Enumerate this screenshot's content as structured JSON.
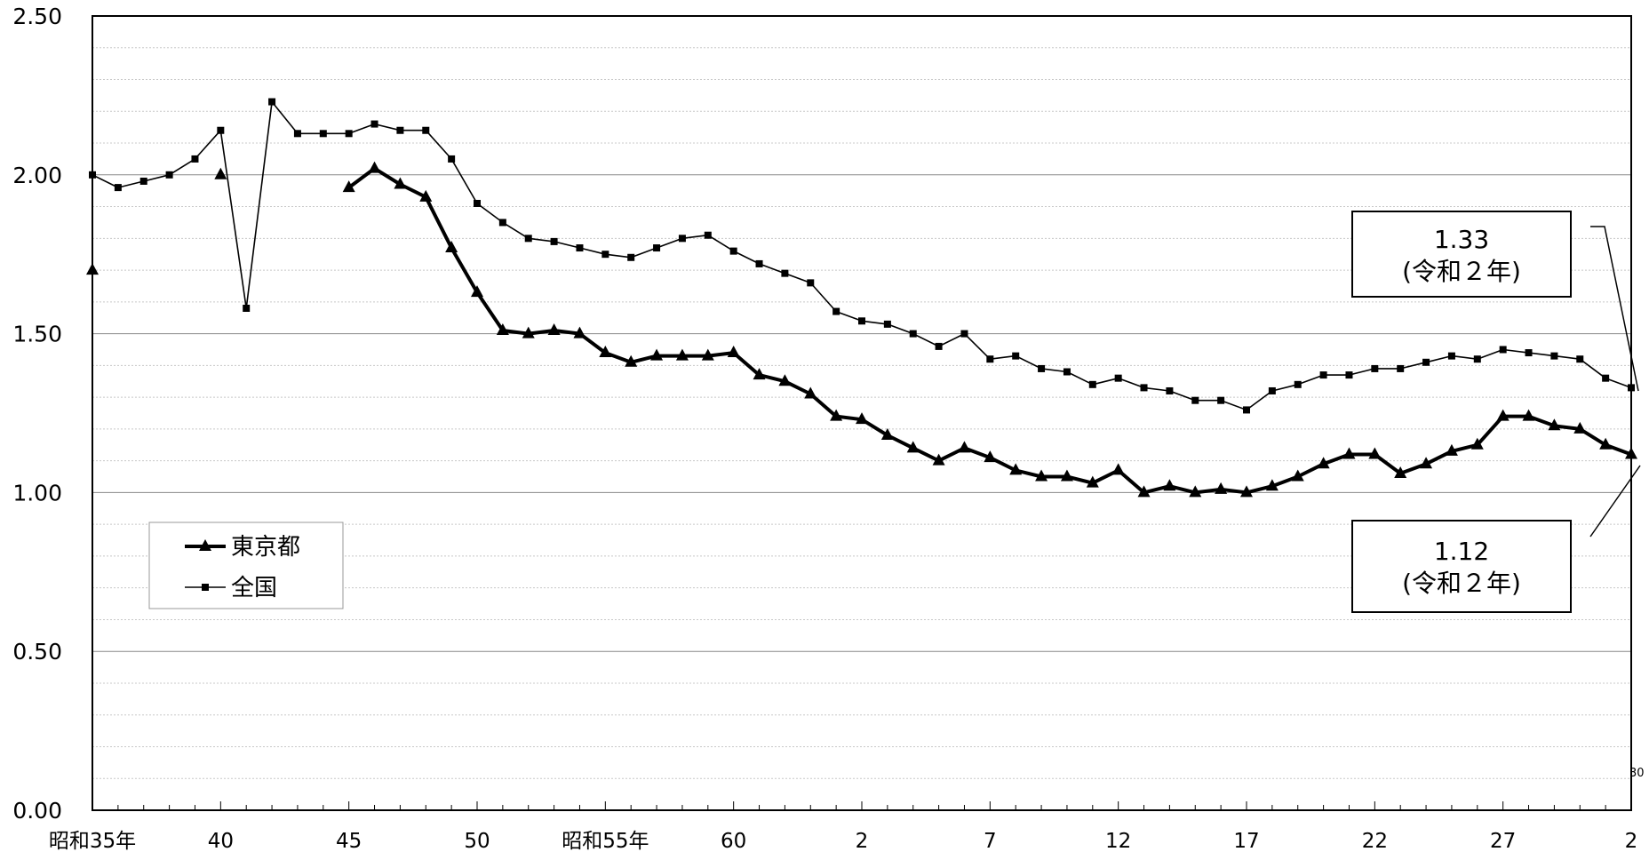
{
  "chart_data": {
    "type": "line",
    "ylim": [
      0,
      2.5
    ],
    "y_ticks": [
      "0.00",
      "0.50",
      "1.00",
      "1.50",
      "2.00",
      "2.50"
    ],
    "grid": true,
    "x_tick_labels": [
      {
        "x": 35,
        "label": "昭和35年"
      },
      {
        "x": 40,
        "label": "40"
      },
      {
        "x": 45,
        "label": "45"
      },
      {
        "x": 50,
        "label": "50"
      },
      {
        "x": 55,
        "label": "昭和55年"
      },
      {
        "x": 60,
        "label": "60"
      },
      {
        "x": 65,
        "label": "2"
      },
      {
        "x": 70,
        "label": "7"
      },
      {
        "x": 75,
        "label": "12"
      },
      {
        "x": 80,
        "label": "17"
      },
      {
        "x": 85,
        "label": "22"
      },
      {
        "x": 90,
        "label": "27"
      },
      {
        "x": 95,
        "label": "2"
      }
    ],
    "small_label": "30",
    "legend": {
      "placement": "middle-left",
      "entries": [
        {
          "name": "東京都",
          "marker": "triangle"
        },
        {
          "name": "全国",
          "marker": "square"
        }
      ]
    },
    "series": [
      {
        "name": "東京都",
        "marker": "triangle",
        "segments": [
          [
            [
              35,
              1.7
            ]
          ],
          [
            [
              40,
              2.0
            ]
          ],
          [
            [
              45,
              1.96
            ],
            [
              46,
              2.02
            ],
            [
              47,
              1.97
            ],
            [
              48,
              1.93
            ],
            [
              49,
              1.77
            ],
            [
              50,
              1.63
            ],
            [
              51,
              1.51
            ],
            [
              52,
              1.5
            ],
            [
              53,
              1.51
            ],
            [
              54,
              1.5
            ],
            [
              55,
              1.44
            ],
            [
              56,
              1.41
            ],
            [
              57,
              1.43
            ],
            [
              58,
              1.43
            ],
            [
              59,
              1.43
            ],
            [
              60,
              1.44
            ],
            [
              61,
              1.37
            ],
            [
              62,
              1.35
            ],
            [
              63,
              1.31
            ],
            [
              64,
              1.24
            ],
            [
              65,
              1.23
            ],
            [
              66,
              1.18
            ],
            [
              67,
              1.14
            ],
            [
              68,
              1.1
            ],
            [
              69,
              1.14
            ],
            [
              70,
              1.11
            ],
            [
              71,
              1.07
            ],
            [
              72,
              1.05
            ],
            [
              73,
              1.05
            ],
            [
              74,
              1.03
            ],
            [
              75,
              1.07
            ],
            [
              76,
              1.0
            ],
            [
              77,
              1.02
            ],
            [
              78,
              1.0
            ],
            [
              79,
              1.01
            ],
            [
              80,
              1.0
            ],
            [
              81,
              1.02
            ],
            [
              82,
              1.05
            ],
            [
              83,
              1.09
            ],
            [
              84,
              1.12
            ],
            [
              85,
              1.12
            ],
            [
              86,
              1.06
            ],
            [
              87,
              1.09
            ],
            [
              88,
              1.13
            ],
            [
              89,
              1.15
            ],
            [
              90,
              1.24
            ],
            [
              91,
              1.24
            ],
            [
              92,
              1.21
            ],
            [
              93,
              1.2
            ],
            [
              94,
              1.15
            ],
            [
              95,
              1.12
            ]
          ]
        ]
      },
      {
        "name": "全国",
        "marker": "square",
        "segments": [
          [
            [
              35,
              2.0
            ],
            [
              36,
              1.96
            ],
            [
              37,
              1.98
            ],
            [
              38,
              2.0
            ],
            [
              39,
              2.05
            ],
            [
              40,
              2.14
            ],
            [
              41,
              1.58
            ],
            [
              42,
              2.23
            ],
            [
              43,
              2.13
            ],
            [
              44,
              2.13
            ],
            [
              45,
              2.13
            ],
            [
              46,
              2.16
            ],
            [
              47,
              2.14
            ],
            [
              48,
              2.14
            ],
            [
              49,
              2.05
            ],
            [
              50,
              1.91
            ],
            [
              51,
              1.85
            ],
            [
              52,
              1.8
            ],
            [
              53,
              1.79
            ],
            [
              54,
              1.77
            ],
            [
              55,
              1.75
            ],
            [
              56,
              1.74
            ],
            [
              57,
              1.77
            ],
            [
              58,
              1.8
            ],
            [
              59,
              1.81
            ],
            [
              60,
              1.76
            ],
            [
              61,
              1.72
            ],
            [
              62,
              1.69
            ],
            [
              63,
              1.66
            ],
            [
              64,
              1.57
            ],
            [
              65,
              1.54
            ],
            [
              66,
              1.53
            ],
            [
              67,
              1.5
            ],
            [
              68,
              1.46
            ],
            [
              69,
              1.5
            ],
            [
              70,
              1.42
            ],
            [
              71,
              1.43
            ],
            [
              72,
              1.39
            ],
            [
              73,
              1.38
            ],
            [
              74,
              1.34
            ],
            [
              75,
              1.36
            ],
            [
              76,
              1.33
            ],
            [
              77,
              1.32
            ],
            [
              78,
              1.29
            ],
            [
              79,
              1.29
            ],
            [
              80,
              1.26
            ],
            [
              81,
              1.32
            ],
            [
              82,
              1.34
            ],
            [
              83,
              1.37
            ],
            [
              84,
              1.37
            ],
            [
              85,
              1.39
            ],
            [
              86,
              1.39
            ],
            [
              87,
              1.41
            ],
            [
              88,
              1.43
            ],
            [
              89,
              1.42
            ],
            [
              90,
              1.45
            ],
            [
              91,
              1.44
            ],
            [
              92,
              1.43
            ],
            [
              93,
              1.42
            ],
            [
              94,
              1.36
            ],
            [
              95,
              1.33
            ]
          ]
        ]
      }
    ],
    "annotations": [
      {
        "value": "1.33",
        "note": "(令和２年)",
        "series": "全国"
      },
      {
        "value": "1.12",
        "note": "(令和２年)",
        "series": "東京都"
      }
    ]
  }
}
